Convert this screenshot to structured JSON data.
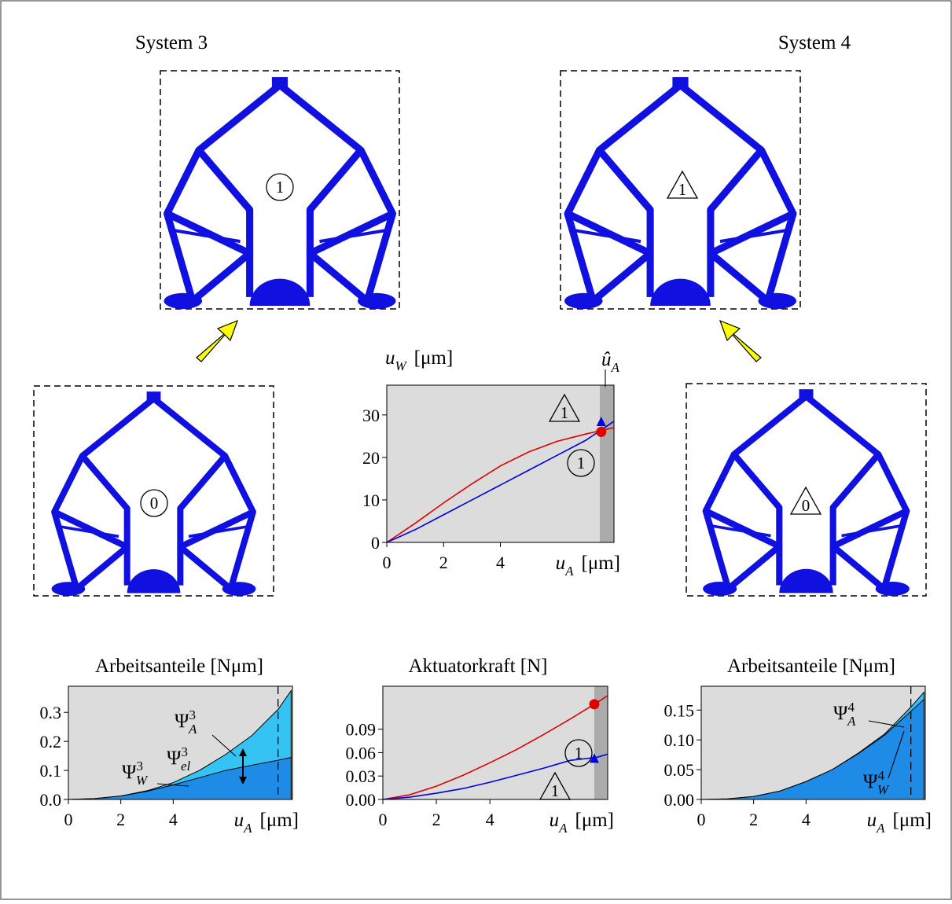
{
  "systems": [
    {
      "title": "System 3"
    },
    {
      "title": "System 4"
    }
  ],
  "structures": [
    {
      "label": "1",
      "shape": "circle"
    },
    {
      "label": "1",
      "shape": "triangle"
    },
    {
      "label": "0",
      "shape": "circle"
    },
    {
      "label": "0",
      "shape": "triangle"
    }
  ],
  "chart_data": [
    {
      "type": "line",
      "ylabel": {
        "text": "u",
        "sub": "W",
        "unit": "[μm]"
      },
      "xlabel": {
        "text": "u",
        "sub": "A",
        "unit": "[μm]"
      },
      "x": [
        0,
        1,
        2,
        3,
        4,
        5,
        6,
        7,
        8
      ],
      "series": [
        {
          "color": "#e00000",
          "values": [
            0,
            4.5,
            9.3,
            13.8,
            18,
            21.3,
            23.8,
            25.5,
            27
          ]
        },
        {
          "color": "#0000e0",
          "values": [
            0,
            3,
            6.5,
            10,
            13.5,
            17,
            20.5,
            24,
            28.5
          ]
        }
      ],
      "markers": [
        {
          "x": 7.55,
          "y": 26,
          "shape": "circle",
          "color": "#e00000"
        },
        {
          "x": 7.55,
          "y": 28.3,
          "shape": "triangle",
          "color": "#0000e0"
        }
      ],
      "shade": [
        7.5,
        8
      ],
      "background": "#dcdcdc",
      "shade_color": "#ababab",
      "annotations": [
        {
          "text": "û",
          "sub": "A"
        },
        {
          "text": "1",
          "shape": "triangle"
        },
        {
          "text": "1",
          "shape": "circle"
        }
      ],
      "xlim": [
        0,
        8
      ],
      "ylim": [
        0,
        37
      ],
      "xticks": [
        0,
        2,
        4
      ],
      "yticks": [
        0,
        10,
        20,
        30
      ]
    },
    {
      "type": "area",
      "title": "Arbeitsanteile [Nμm]",
      "xlabel": {
        "text": "u",
        "sub": "A",
        "unit": "[μm]"
      },
      "x": [
        0,
        1,
        2,
        3,
        4,
        5,
        6,
        7,
        8,
        8.5
      ],
      "series": [
        {
          "color": "#35c3f3",
          "values": [
            0,
            0.003,
            0.012,
            0.03,
            0.058,
            0.1,
            0.155,
            0.22,
            0.31,
            0.375
          ]
        },
        {
          "color": "#1e8ce6",
          "values": [
            0,
            0.003,
            0.012,
            0.028,
            0.05,
            0.075,
            0.1,
            0.118,
            0.135,
            0.145
          ]
        }
      ],
      "vline": 8,
      "background": "#dcdcdc",
      "annotations": [
        {
          "text": "Ψ",
          "sup": "3",
          "sub": "A"
        },
        {
          "text": "Ψ",
          "sup": "3",
          "sub": "el"
        },
        {
          "text": "Ψ",
          "sup": "3",
          "sub": "W"
        }
      ],
      "xlim": [
        0,
        8.55
      ],
      "ylim": [
        0,
        0.39
      ],
      "xticks": [
        0,
        2,
        4
      ],
      "yticks": [
        {
          "value": 0,
          "label": "0.0"
        },
        0.1,
        0.2,
        0.3
      ]
    },
    {
      "type": "line",
      "title": "Aktuatorkraft [N]",
      "xlabel": {
        "text": "u",
        "sub": "A",
        "unit": "[μm]"
      },
      "x": [
        0,
        1,
        2,
        3,
        4,
        5,
        6,
        7,
        8,
        8.4
      ],
      "series": [
        {
          "color": "#e00000",
          "values": [
            0,
            0.006,
            0.017,
            0.031,
            0.047,
            0.064,
            0.083,
            0.103,
            0.124,
            0.133
          ]
        },
        {
          "color": "#0000e0",
          "values": [
            0,
            0.003,
            0.008,
            0.014,
            0.022,
            0.031,
            0.04,
            0.05,
            0.054,
            0.058
          ]
        }
      ],
      "markers": [
        {
          "x": 7.9,
          "y": 0.122,
          "shape": "circle",
          "color": "#e00000"
        },
        {
          "x": 7.9,
          "y": 0.052,
          "shape": "triangle",
          "color": "#0000e0"
        }
      ],
      "shade": [
        7.9,
        8.4
      ],
      "background": "#dcdcdc",
      "shade_color": "#ababab",
      "annotations": [
        {
          "text": "1",
          "shape": "circle"
        },
        {
          "text": "1",
          "shape": "triangle"
        }
      ],
      "xlim": [
        0,
        8.4
      ],
      "ylim": [
        0,
        0.145
      ],
      "xticks": [
        0,
        2,
        4
      ],
      "yticks": [
        {
          "value": 0,
          "label": "0.00"
        },
        0.03,
        0.06,
        0.09
      ]
    },
    {
      "type": "area",
      "title": "Arbeitsanteile [Nμm]",
      "xlabel": {
        "text": "u",
        "sub": "A",
        "unit": "[μm]"
      },
      "x": [
        0,
        1,
        2,
        3,
        4,
        5,
        6,
        7,
        8,
        8.5
      ],
      "series": [
        {
          "color": "#35c3f3",
          "values": [
            0,
            0.001,
            0.005,
            0.014,
            0.03,
            0.05,
            0.078,
            0.11,
            0.155,
            0.18
          ]
        },
        {
          "color": "#1e8ce6",
          "values": [
            0,
            0.001,
            0.005,
            0.014,
            0.03,
            0.05,
            0.077,
            0.108,
            0.148,
            0.168
          ]
        }
      ],
      "vline": 8,
      "background": "#dcdcdc",
      "annotations": [
        {
          "text": "Ψ",
          "sup": "4",
          "sub": "A"
        },
        {
          "text": "Ψ",
          "sup": "4",
          "sub": "W"
        }
      ],
      "xlim": [
        0,
        8.55
      ],
      "ylim": [
        0,
        0.19
      ],
      "xticks": [
        0,
        2,
        4
      ],
      "yticks": [
        {
          "value": 0,
          "label": "0.00"
        },
        0.05,
        {
          "value": 0.1,
          "label": "0.10"
        },
        0.15
      ]
    }
  ]
}
